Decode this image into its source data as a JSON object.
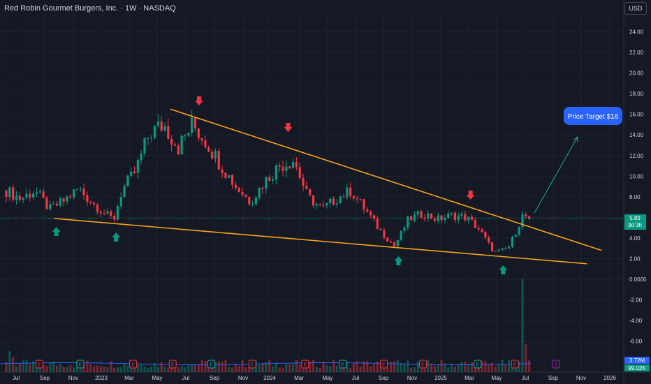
{
  "header": {
    "title": "Red Robin Gourmet Burgers, Inc. · 1W · NASDAQ",
    "currency": "USD"
  },
  "price_badge": {
    "price": "5.89",
    "countdown": "3d 3h"
  },
  "volume_badges": {
    "volume": "3.72M",
    "ma": "99.02K"
  },
  "target_label": "Price Target $16",
  "colors": {
    "up": "#089981",
    "down": "#f23645",
    "trendline": "#f7a21b",
    "target_line": "#26a69a",
    "target_bubble": "#2962ff",
    "event_earnings": "#d1d4dc",
    "event_dividend": "#26a69a"
  },
  "chart_data": {
    "type": "candlestick",
    "interval": "1W",
    "symbol": "Red Robin Gourmet Burgers, Inc.",
    "exchange": "NASDAQ",
    "ylim": [
      -7.5,
      25.5
    ],
    "yticks": [
      "24.00",
      "22.00",
      "20.00",
      "18.00",
      "16.00",
      "14.00",
      "12.00",
      "10.00",
      "8.00",
      "6.00",
      "4.00",
      "2.00",
      "0.0000",
      "-2.00",
      "-4.00",
      "-6.00"
    ],
    "x_tick_labels": [
      "Jul",
      "Sep",
      "Nov",
      "2023",
      "Mar",
      "May",
      "Jul",
      "Sep",
      "Nov",
      "2024",
      "Mar",
      "May",
      "Jul",
      "Sep",
      "Nov",
      "2025",
      "Mar",
      "May",
      "Jul",
      "Sep",
      "Nov",
      "2026"
    ],
    "last_price": 5.89,
    "price_path": [
      [
        "2022-06-01",
        8.6
      ],
      [
        "2022-07-01",
        7.8
      ],
      [
        "2022-08-01",
        8.6
      ],
      [
        "2022-09-01",
        6.8
      ],
      [
        "2022-10-01",
        7.6
      ],
      [
        "2022-11-01",
        8.8
      ],
      [
        "2022-12-01",
        7.4
      ],
      [
        "2023-01-01",
        6.2
      ],
      [
        "2023-01-15",
        5.8
      ],
      [
        "2023-02-01",
        8.6
      ],
      [
        "2023-03-01",
        10.4
      ],
      [
        "2023-04-01",
        14.2
      ],
      [
        "2023-05-01",
        15.0
      ],
      [
        "2023-06-01",
        12.8
      ],
      [
        "2023-07-01",
        15.0
      ],
      [
        "2023-08-01",
        13.2
      ],
      [
        "2023-09-01",
        11.0
      ],
      [
        "2023-10-01",
        9.0
      ],
      [
        "2023-11-01",
        7.5
      ],
      [
        "2023-12-01",
        9.5
      ],
      [
        "2024-01-01",
        11.0
      ],
      [
        "2024-02-01",
        11.6
      ],
      [
        "2024-03-01",
        8.0
      ],
      [
        "2024-04-01",
        6.8
      ],
      [
        "2024-05-01",
        7.8
      ],
      [
        "2024-06-01",
        8.6
      ],
      [
        "2024-07-01",
        6.8
      ],
      [
        "2024-08-01",
        4.8
      ],
      [
        "2024-09-01",
        3.2
      ],
      [
        "2024-10-01",
        5.8
      ],
      [
        "2024-11-01",
        6.4
      ],
      [
        "2024-12-01",
        5.8
      ],
      [
        "2025-01-01",
        6.2
      ],
      [
        "2025-02-01",
        6.0
      ],
      [
        "2025-03-01",
        4.8
      ],
      [
        "2025-04-01",
        2.6
      ],
      [
        "2025-05-01",
        3.0
      ],
      [
        "2025-06-01",
        6.2
      ],
      [
        "2025-06-20",
        5.89
      ]
    ],
    "trendlines": [
      {
        "name": "resistance",
        "from": [
          "2023-05-15",
          16.5
        ],
        "to": [
          "2025-11-15",
          2.8
        ]
      },
      {
        "name": "support",
        "from": [
          "2022-09-10",
          5.9
        ],
        "to": [
          "2025-10-15",
          1.5
        ]
      }
    ],
    "projection": {
      "from": [
        "2025-06-25",
        6.4
      ],
      "to": [
        "2025-09-25",
        13.8
      ]
    },
    "arrows_down": [
      "2023-07-15",
      "2024-01-20",
      "2025-02-10"
    ],
    "arrows_up": [
      "2022-09-15",
      "2023-01-20",
      "2024-09-10",
      "2025-04-20"
    ],
    "earnings_markers": [
      "2022-08-10",
      "2022-11-05",
      "2023-02-25",
      "2023-05-20",
      "2023-08-10",
      "2023-11-05",
      "2024-02-25",
      "2024-05-15",
      "2024-08-10",
      "2024-11-01",
      "2025-02-25",
      "2025-05-15",
      "2025-08-10"
    ]
  }
}
